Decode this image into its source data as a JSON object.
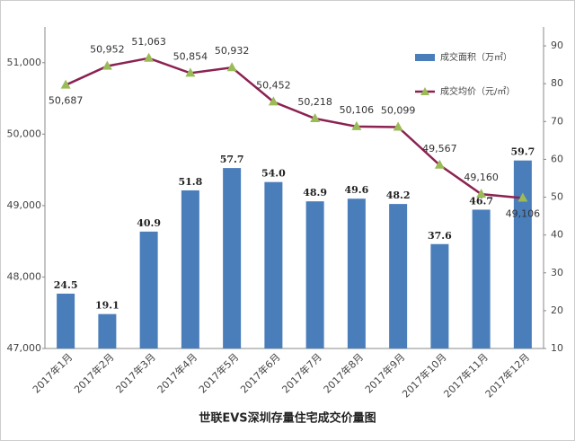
{
  "chart_data": {
    "type": "bar_line",
    "title": "世联EVS深圳存量住宅成交价量图",
    "categories": [
      "2017年1月",
      "2017年2月",
      "2017年3月",
      "2017年4月",
      "2017年5月",
      "2017年6月",
      "2017年7月",
      "2017年8月",
      "2017年9月",
      "2017年10月",
      "2017年11月",
      "2017年12月"
    ],
    "series": [
      {
        "name": "成交面积（万㎡）",
        "type": "bar",
        "axis": "y2",
        "color": "#4a7ebb",
        "values": [
          24.5,
          19.1,
          40.9,
          51.8,
          57.7,
          54.0,
          48.9,
          49.6,
          48.2,
          37.6,
          46.7,
          59.7
        ],
        "value_labels": [
          "24.5",
          "19.1",
          "40.9",
          "51.8",
          "57.7",
          "54.0",
          "48.9",
          "49.6",
          "48.2",
          "37.6",
          "46.7",
          "59.7"
        ]
      },
      {
        "name": "成交均价（元/㎡）",
        "type": "line",
        "axis": "y",
        "color": "#8b2252",
        "marker_color": "#9bbb59",
        "values": [
          50687,
          50952,
          51063,
          50854,
          50932,
          50452,
          50218,
          50106,
          50099,
          49567,
          49160,
          49106
        ],
        "value_labels": [
          "50,687",
          "50,952",
          "51,063",
          "50,854",
          "50,932",
          "50,452",
          "50,218",
          "50,106",
          "50,099",
          "49,567",
          "49,160",
          "49,106"
        ]
      }
    ],
    "ylim": [
      47000,
      51500
    ],
    "yticks": [
      {
        "value": 47000,
        "label": "47,000"
      },
      {
        "value": 48000,
        "label": "48,000"
      },
      {
        "value": 49000,
        "label": "49,000"
      },
      {
        "value": 50000,
        "label": "50,000"
      },
      {
        "value": 51000,
        "label": "51,000"
      }
    ],
    "y2lim": [
      10,
      95
    ],
    "y2ticks": [
      10,
      20,
      30,
      40,
      50,
      60,
      70,
      80,
      90
    ],
    "legend": "top-right"
  }
}
